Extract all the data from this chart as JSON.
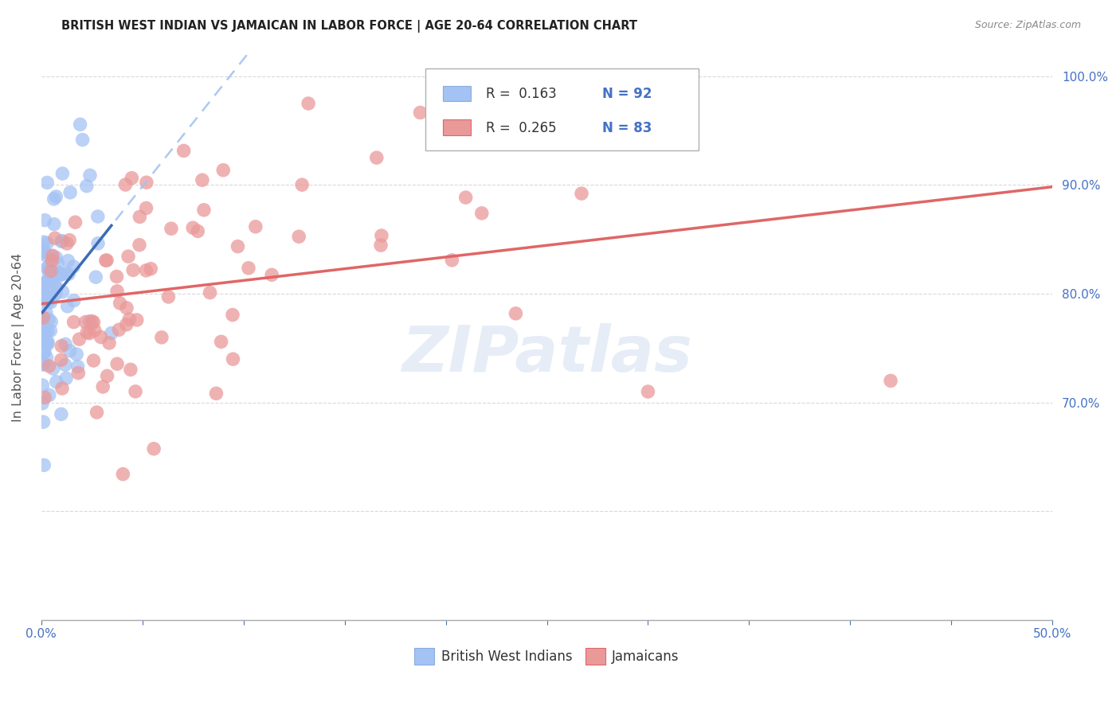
{
  "title": "BRITISH WEST INDIAN VS JAMAICAN IN LABOR FORCE | AGE 20-64 CORRELATION CHART",
  "source": "Source: ZipAtlas.com",
  "ylabel": "In Labor Force | Age 20-64",
  "legend_label1": "British West Indians",
  "legend_label2": "Jamaicans",
  "blue_color": "#a4c2f4",
  "pink_color": "#ea9999",
  "blue_dot_edge": "#6fa8dc",
  "pink_dot_edge": "#e06666",
  "blue_trend_dashed_color": "#a4c2f4",
  "blue_trend_solid_color": "#3d6bb5",
  "pink_trend_color": "#e06666",
  "watermark": "ZIPatlas",
  "r1": 0.163,
  "n1": 92,
  "r2": 0.265,
  "n2": 83,
  "xmin": 0.0,
  "xmax": 0.5,
  "ymin": 0.5,
  "ymax": 1.02,
  "yticks": [
    0.7,
    0.8,
    0.9,
    1.0
  ],
  "xtick_labels_show": [
    0.0,
    0.5
  ],
  "grid_color": "#d0d0d0",
  "title_fontsize": 10.5,
  "source_fontsize": 9,
  "tick_fontsize": 11,
  "legend_fontsize": 12
}
